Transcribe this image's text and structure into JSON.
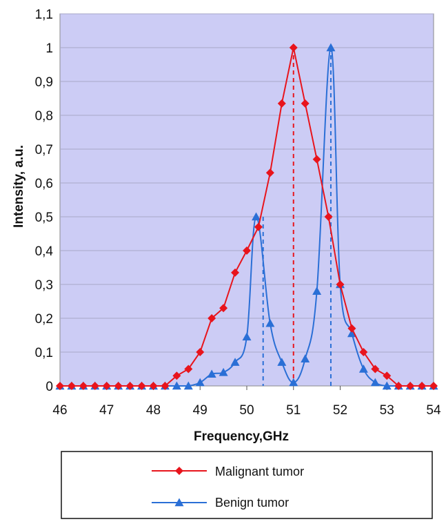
{
  "chart_data": {
    "type": "line",
    "title": "",
    "xlabel": "Frequency,GHz",
    "ylabel": "Intensity, a.u.",
    "xlim": [
      46,
      54
    ],
    "ylim": [
      0,
      1.1
    ],
    "x_ticks": [
      "46",
      "47",
      "48",
      "49",
      "50",
      "51",
      "52",
      "53",
      "54"
    ],
    "y_ticks": [
      "0",
      "0,1",
      "0,2",
      "0,3",
      "0,4",
      "0,5",
      "0,6",
      "0,7",
      "0,8",
      "0,9",
      "1",
      "1,1"
    ],
    "grid": true,
    "plot_background": "#ccccf5",
    "legend_position": "bottom",
    "series": [
      {
        "name": "Malignant tumor",
        "color": "#e8141c",
        "marker": "diamond",
        "x": [
          46.0,
          46.25,
          46.5,
          46.75,
          47.0,
          47.25,
          47.5,
          47.75,
          48.0,
          48.25,
          48.5,
          48.75,
          49.0,
          49.25,
          49.5,
          49.75,
          50.0,
          50.25,
          50.5,
          50.75,
          51.0,
          51.25,
          51.5,
          51.75,
          52.0,
          52.25,
          52.5,
          52.75,
          53.0,
          53.25,
          53.5,
          53.75,
          54.0
        ],
        "y": [
          0,
          0,
          0,
          0,
          0,
          0,
          0,
          0,
          0,
          0,
          0.03,
          0.05,
          0.1,
          0.2,
          0.23,
          0.335,
          0.4,
          0.47,
          0.63,
          0.835,
          1.0,
          0.835,
          0.67,
          0.5,
          0.3,
          0.17,
          0.1,
          0.05,
          0.03,
          0,
          0,
          0,
          0
        ]
      },
      {
        "name": "Benign tumor",
        "color": "#2a6fd6",
        "marker": "triangle",
        "x": [
          46.0,
          46.25,
          46.5,
          46.75,
          47.0,
          47.25,
          47.5,
          47.75,
          48.0,
          48.25,
          48.5,
          48.75,
          49.0,
          49.25,
          49.5,
          49.75,
          50.0,
          50.2,
          50.5,
          50.75,
          51.0,
          51.25,
          51.5,
          51.8,
          52.0,
          52.25,
          52.5,
          52.75,
          53.0,
          53.25,
          53.5,
          53.75,
          54.0
        ],
        "y": [
          0,
          0,
          0,
          0,
          0,
          0,
          0,
          0,
          0,
          0,
          0,
          0,
          0.01,
          0.035,
          0.04,
          0.07,
          0.145,
          0.5,
          0.185,
          0.07,
          0.01,
          0.08,
          0.28,
          1.0,
          0.3,
          0.155,
          0.05,
          0.01,
          0,
          0,
          0,
          0,
          0
        ]
      }
    ],
    "reference_lines": [
      {
        "x": 51.0,
        "color": "#e8141c",
        "style": "dashed"
      },
      {
        "x": 50.35,
        "color": "#2a6fd6",
        "style": "dashed"
      },
      {
        "x": 51.8,
        "color": "#2a6fd6",
        "style": "dashed"
      }
    ]
  }
}
